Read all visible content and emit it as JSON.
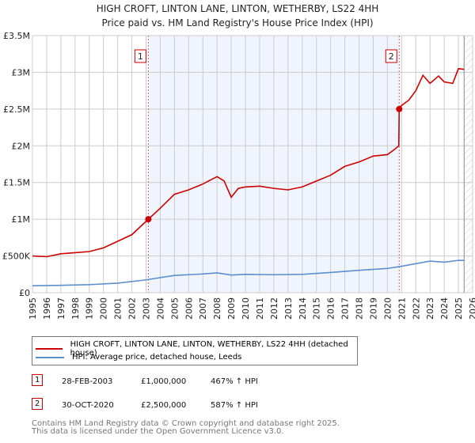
{
  "chart_data": {
    "type": "line",
    "title": "HIGH CROFT, LINTON LANE, LINTON, WETHERBY, LS22 4HH",
    "subtitle": "Price paid vs. HM Land Registry's House Price Index (HPI)",
    "xlim": [
      1995,
      2026
    ],
    "ylim": [
      0,
      3500000
    ],
    "x_ticks": [
      "1995",
      "1996",
      "1997",
      "1998",
      "1999",
      "2000",
      "2001",
      "2002",
      "2003",
      "2004",
      "2005",
      "2006",
      "2007",
      "2008",
      "2009",
      "2010",
      "2011",
      "2012",
      "2013",
      "2014",
      "2015",
      "2016",
      "2017",
      "2018",
      "2019",
      "2020",
      "2021",
      "2022",
      "2023",
      "2024",
      "2025",
      "2026"
    ],
    "y_ticks": [
      {
        "v": 0,
        "label": "£0"
      },
      {
        "v": 500000,
        "label": "£500K"
      },
      {
        "v": 1000000,
        "label": "£1M"
      },
      {
        "v": 1500000,
        "label": "£1.5M"
      },
      {
        "v": 2000000,
        "label": "£2M"
      },
      {
        "v": 2500000,
        "label": "£2.5M"
      },
      {
        "v": 3000000,
        "label": "£3M"
      },
      {
        "v": 3500000,
        "label": "£3.5M"
      }
    ],
    "grid": true,
    "series": [
      {
        "name": "HIGH CROFT, LINTON LANE, LINTON, WETHERBY, LS22 4HH (detached house)",
        "color": "#cc0000",
        "x": [
          1995,
          1996,
          1997,
          1998,
          1999,
          2000,
          2001,
          2002,
          2003.16,
          2004,
          2005,
          2006,
          2007,
          2008,
          2008.5,
          2009,
          2009.5,
          2010,
          2011,
          2012,
          2013,
          2014,
          2015,
          2016,
          2017,
          2018,
          2019,
          2020,
          2020.5,
          2020.8,
          2020.83,
          2021,
          2021.5,
          2022,
          2022.5,
          2023,
          2023.6,
          2024,
          2024.6,
          2025,
          2025.4
        ],
        "y": [
          500000,
          490000,
          530000,
          545000,
          560000,
          610000,
          700000,
          790000,
          1000000,
          1150000,
          1340000,
          1400000,
          1480000,
          1580000,
          1520000,
          1300000,
          1420000,
          1440000,
          1450000,
          1420000,
          1400000,
          1440000,
          1520000,
          1600000,
          1720000,
          1780000,
          1860000,
          1880000,
          1950000,
          2000000,
          2500000,
          2550000,
          2620000,
          2750000,
          2960000,
          2850000,
          2950000,
          2870000,
          2850000,
          3050000,
          3040000
        ]
      },
      {
        "name": "HPI: Average price, detached house, Leeds",
        "color": "#5b8fd0",
        "x": [
          1995,
          1997,
          1999,
          2001,
          2003,
          2005,
          2007,
          2008,
          2009,
          2010,
          2012,
          2014,
          2016,
          2018,
          2020,
          2021,
          2022,
          2023,
          2024,
          2025,
          2025.4
        ],
        "y": [
          95000,
          100000,
          110000,
          130000,
          175000,
          235000,
          255000,
          270000,
          240000,
          250000,
          245000,
          250000,
          275000,
          305000,
          330000,
          360000,
          395000,
          430000,
          415000,
          440000,
          440000
        ]
      }
    ],
    "annotations": [
      {
        "label": "1",
        "x": 2003.16,
        "y": 1000000
      },
      {
        "label": "2",
        "x": 2020.83,
        "y": 2500000
      }
    ],
    "shaded_range": [
      2003.16,
      2020.83
    ],
    "forecast_from": 2025.4
  },
  "legend": [
    {
      "label": "HIGH CROFT, LINTON LANE, LINTON, WETHERBY, LS22 4HH (detached house)",
      "color": "#cc0000"
    },
    {
      "label": "HPI: Average price, detached house, Leeds",
      "color": "#5b8fd0"
    }
  ],
  "sales": [
    {
      "num": "1",
      "date": "28-FEB-2003",
      "price": "£1,000,000",
      "hpi": "467% ↑ HPI"
    },
    {
      "num": "2",
      "date": "30-OCT-2020",
      "price": "£2,500,000",
      "hpi": "587% ↑ HPI"
    }
  ],
  "footer": [
    "Contains HM Land Registry data © Crown copyright and database right 2025.",
    "This data is licensed under the Open Government Licence v3.0."
  ]
}
